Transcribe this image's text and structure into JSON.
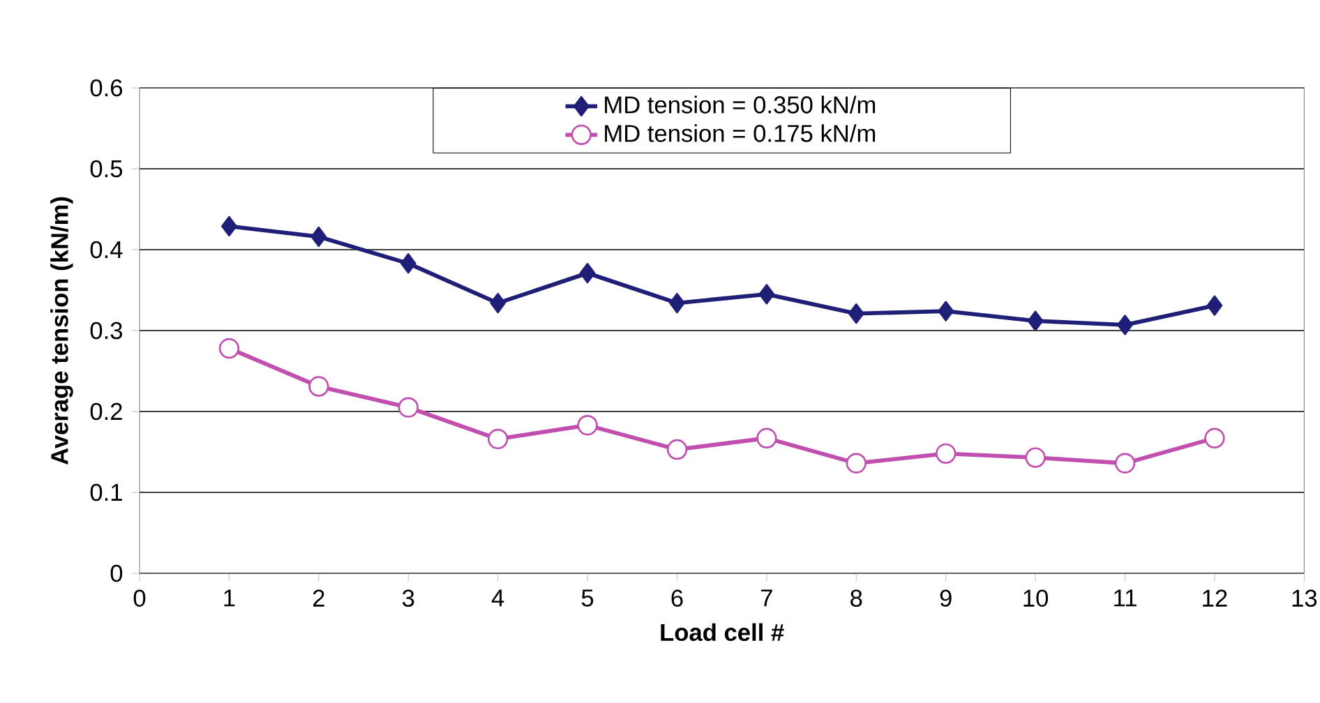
{
  "chart_data": {
    "type": "line",
    "xlabel": "Load cell #",
    "ylabel": "Average tension (kN/m)",
    "x": [
      1,
      2,
      3,
      4,
      5,
      6,
      7,
      8,
      9,
      10,
      11,
      12
    ],
    "series": [
      {
        "name": "MD tension = 0.350 kN/m",
        "color": "#1f1f78",
        "marker": "diamond",
        "values": [
          0.429,
          0.416,
          0.383,
          0.334,
          0.371,
          0.334,
          0.345,
          0.321,
          0.324,
          0.312,
          0.307,
          0.331
        ]
      },
      {
        "name": "MD tension = 0.175 kN/m",
        "color": "#c04fb0",
        "marker": "circle",
        "values": [
          0.278,
          0.231,
          0.205,
          0.166,
          0.183,
          0.153,
          0.167,
          0.136,
          0.148,
          0.143,
          0.136,
          0.167
        ]
      }
    ],
    "xlim": [
      0,
      13
    ],
    "xticks": [
      0,
      1,
      2,
      3,
      4,
      5,
      6,
      7,
      8,
      9,
      10,
      11,
      12,
      13
    ],
    "ylim": [
      0,
      0.6
    ],
    "yticks": [
      0,
      0.1,
      0.2,
      0.3,
      0.4,
      0.5,
      0.6
    ],
    "grid": "y",
    "legend": "top",
    "line_style": "solid"
  }
}
